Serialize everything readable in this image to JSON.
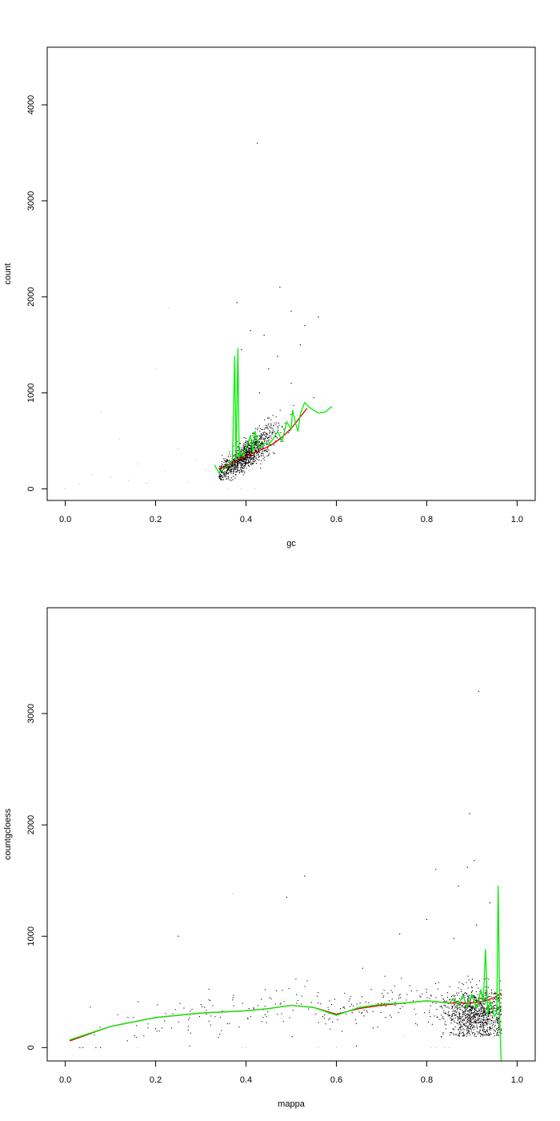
{
  "chart_data": [
    {
      "type": "scatter",
      "title": "",
      "xlabel": "gc",
      "ylabel": "count",
      "xlim": [
        -0.04,
        1.04
      ],
      "ylim": [
        -120,
        4600
      ],
      "xticks": [
        0,
        0.2,
        0.4,
        0.6,
        0.8,
        1
      ],
      "xtick_labels": [
        "0.0",
        "0.2",
        "0.4",
        "0.6",
        "0.8",
        "1.0"
      ],
      "yticks": [
        0,
        1000,
        2000,
        3000,
        4000
      ],
      "ytick_labels": [
        "0",
        "1000",
        "2000",
        "3000",
        "4000"
      ],
      "grid": false,
      "points_color": "#000000",
      "faint_points_color": "#e8b8c8",
      "cluster": {
        "x_center": 0.4,
        "x_spread": 0.035,
        "x_min": 0.34,
        "x_max": 0.56,
        "intercept": -1000,
        "slope": 3400,
        "noise": 90,
        "count": 1100
      },
      "outliers": [
        {
          "x": 0.425,
          "y": 3600
        },
        {
          "x": 0.475,
          "y": 2100
        },
        {
          "x": 0.38,
          "y": 1940
        },
        {
          "x": 0.5,
          "y": 1850
        },
        {
          "x": 0.56,
          "y": 1790
        },
        {
          "x": 0.53,
          "y": 1700
        },
        {
          "x": 0.41,
          "y": 1650
        },
        {
          "x": 0.44,
          "y": 1600
        },
        {
          "x": 0.52,
          "y": 1500
        },
        {
          "x": 0.39,
          "y": 1450
        },
        {
          "x": 0.47,
          "y": 1380
        },
        {
          "x": 0.45,
          "y": 1250
        },
        {
          "x": 0.5,
          "y": 1100
        },
        {
          "x": 0.43,
          "y": 1000
        },
        {
          "x": 0.55,
          "y": 950
        }
      ],
      "faint_points": [
        {
          "x": 0.0,
          "y": 0
        },
        {
          "x": 0.03,
          "y": 50
        },
        {
          "x": 0.06,
          "y": 150
        },
        {
          "x": 0.08,
          "y": 800
        },
        {
          "x": 0.1,
          "y": 120
        },
        {
          "x": 0.12,
          "y": 520
        },
        {
          "x": 0.14,
          "y": 90
        },
        {
          "x": 0.16,
          "y": 260
        },
        {
          "x": 0.18,
          "y": 60
        },
        {
          "x": 0.2,
          "y": 1250
        },
        {
          "x": 0.22,
          "y": 180
        },
        {
          "x": 0.23,
          "y": 1880
        },
        {
          "x": 0.25,
          "y": 420
        },
        {
          "x": 0.27,
          "y": 70
        },
        {
          "x": 0.29,
          "y": 300
        },
        {
          "x": 0.31,
          "y": 200
        },
        {
          "x": 0.36,
          "y": 0
        },
        {
          "x": 0.39,
          "y": 0
        },
        {
          "x": 0.42,
          "y": 0
        }
      ],
      "series": [
        {
          "color": "#dd0000",
          "x": [
            0.34,
            0.36,
            0.38,
            0.4,
            0.42,
            0.44,
            0.46,
            0.48,
            0.5,
            0.52,
            0.535
          ],
          "y": [
            200,
            250,
            300,
            340,
            380,
            420,
            470,
            540,
            630,
            750,
            840
          ]
        },
        {
          "color": "#00ee00",
          "x": [
            0.33,
            0.34,
            0.355,
            0.37,
            0.375,
            0.378,
            0.382,
            0.385,
            0.388,
            0.392,
            0.4,
            0.41,
            0.415,
            0.42,
            0.43,
            0.44,
            0.45,
            0.46,
            0.47,
            0.48,
            0.49,
            0.5,
            0.503,
            0.51,
            0.515,
            0.52,
            0.53,
            0.54,
            0.56,
            0.575,
            0.59
          ],
          "y": [
            250,
            170,
            220,
            300,
            1380,
            300,
            1460,
            320,
            380,
            340,
            420,
            560,
            380,
            600,
            420,
            480,
            460,
            520,
            600,
            500,
            700,
            620,
            820,
            680,
            600,
            780,
            900,
            850,
            790,
            800,
            860
          ]
        }
      ]
    },
    {
      "type": "scatter",
      "title": "",
      "xlabel": "mappa",
      "ylabel": "countgcloess",
      "xlim": [
        -0.04,
        1.04
      ],
      "ylim": [
        -120,
        3950
      ],
      "xticks": [
        0,
        0.2,
        0.4,
        0.6,
        0.8,
        1
      ],
      "xtick_labels": [
        "0.0",
        "0.2",
        "0.4",
        "0.6",
        "0.8",
        "1.0"
      ],
      "yticks": [
        0,
        1000,
        2000,
        3000
      ],
      "ytick_labels": [
        "0",
        "1000",
        "2000",
        "3000"
      ],
      "grid": false,
      "points_color": "#000000",
      "faint_points_color": "#e8b8c8",
      "cluster": {
        "x_center": 0.91,
        "x_spread": 0.035,
        "x_min": 0.8,
        "x_max": 0.965,
        "y_center": 300,
        "y_spread": 120,
        "count": 1000
      },
      "sparse_points": {
        "x_min": 0.0,
        "x_max": 0.88,
        "count": 260
      },
      "outliers": [
        {
          "x": 0.915,
          "y": 3200
        },
        {
          "x": 0.895,
          "y": 2100
        },
        {
          "x": 0.905,
          "y": 1680
        },
        {
          "x": 0.89,
          "y": 1620
        },
        {
          "x": 0.82,
          "y": 1600
        },
        {
          "x": 0.53,
          "y": 1540
        },
        {
          "x": 0.87,
          "y": 1450
        },
        {
          "x": 0.49,
          "y": 1350
        },
        {
          "x": 0.94,
          "y": 1300
        },
        {
          "x": 0.8,
          "y": 1150
        },
        {
          "x": 0.25,
          "y": 1000
        },
        {
          "x": 0.74,
          "y": 1020
        },
        {
          "x": 0.91,
          "y": 1100
        },
        {
          "x": 0.86,
          "y": 980
        }
      ],
      "faint_points": [
        {
          "x": 0.37,
          "y": 1380
        },
        {
          "x": 0.16,
          "y": 0
        },
        {
          "x": 0.39,
          "y": 0
        },
        {
          "x": 0.4,
          "y": 0
        },
        {
          "x": 0.56,
          "y": 0
        },
        {
          "x": 0.6,
          "y": 0
        },
        {
          "x": 0.81,
          "y": 0
        },
        {
          "x": 0.82,
          "y": 0
        },
        {
          "x": 0.84,
          "y": 0
        },
        {
          "x": 0.85,
          "y": 0
        },
        {
          "x": 0.75,
          "y": 100
        }
      ],
      "series": [
        {
          "color": "#dd0000",
          "x": [
            0.01,
            0.1,
            0.2,
            0.3,
            0.4,
            0.45,
            0.5,
            0.55,
            0.6,
            0.65,
            0.7,
            0.75,
            0.8,
            0.85,
            0.9,
            0.93,
            0.95,
            0.965
          ],
          "y": [
            60,
            190,
            270,
            310,
            330,
            350,
            380,
            360,
            300,
            350,
            380,
            400,
            420,
            400,
            400,
            420,
            450,
            490
          ]
        },
        {
          "color": "#00ee00",
          "x": [
            0.01,
            0.1,
            0.2,
            0.3,
            0.4,
            0.45,
            0.5,
            0.55,
            0.6,
            0.65,
            0.7,
            0.75,
            0.8,
            0.85,
            0.86,
            0.87,
            0.88,
            0.89,
            0.9,
            0.91,
            0.92,
            0.925,
            0.93,
            0.935,
            0.94,
            0.945,
            0.95,
            0.955,
            0.958,
            0.962,
            0.965
          ],
          "y": [
            70,
            190,
            270,
            310,
            330,
            350,
            380,
            360,
            290,
            360,
            390,
            400,
            420,
            400,
            440,
            380,
            470,
            360,
            480,
            350,
            520,
            400,
            880,
            300,
            420,
            350,
            280,
            320,
            1450,
            200,
            -150
          ]
        }
      ]
    }
  ]
}
